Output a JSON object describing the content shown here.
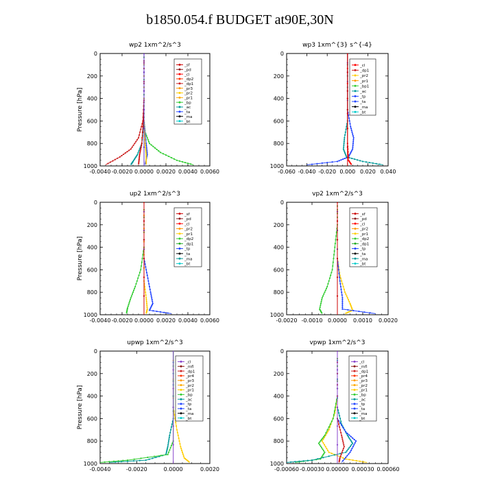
{
  "page": {
    "title": "b1850.054.f  BUDGET at90E,30N"
  },
  "chart_data": [
    {
      "type": "line",
      "title": "wp2  1xm^2/s^3",
      "ylabel": "Pressure [hPa]",
      "xlim": [
        -0.004,
        0.006
      ],
      "ylim": [
        1000,
        0
      ],
      "xticks": [
        "-0.0040",
        "-0.0020",
        "0.0000",
        "0.0020",
        "0.0040",
        "0.0060"
      ],
      "yticks": [
        "0",
        "200",
        "400",
        "600",
        "800",
        "1000"
      ],
      "legend": [
        "_sf",
        "_pd",
        "_cl",
        "_dp2",
        "_dp1",
        "_pr3",
        "_pr2",
        "_pr1",
        "_bp",
        "_ac",
        "_ta",
        "_ma",
        "_bt"
      ],
      "legend_colors": [
        "#cc0000",
        "#8b1a1a",
        "#ff0000",
        "#ff3300",
        "#cc2222",
        "#ff9900",
        "#ffcc00",
        "#ffaa00",
        "#33cc33",
        "#009999",
        "#2244ff",
        "#000000",
        "#00cccc"
      ],
      "series": [
        {
          "name": "_pr1",
          "color": "#33cc33",
          "points": [
            [
              0,
              0
            ],
            [
              0,
              200
            ],
            [
              0,
              400
            ],
            [
              0,
              600
            ],
            [
              0.0001,
              700
            ],
            [
              0.0005,
              800
            ],
            [
              0.0015,
              880
            ],
            [
              0.003,
              950
            ],
            [
              0.0045,
              990
            ]
          ]
        },
        {
          "name": "_dp1",
          "color": "#cc2222",
          "points": [
            [
              0,
              0
            ],
            [
              0,
              400
            ],
            [
              -0.0001,
              600
            ],
            [
              -0.0005,
              750
            ],
            [
              -0.0012,
              850
            ],
            [
              -0.0022,
              920
            ],
            [
              -0.0035,
              990
            ]
          ]
        },
        {
          "name": "_ac",
          "color": "#009999",
          "points": [
            [
              0,
              0
            ],
            [
              0,
              600
            ],
            [
              -0.0002,
              800
            ],
            [
              -0.0006,
              900
            ],
            [
              -0.001,
              960
            ],
            [
              -0.0012,
              990
            ]
          ]
        },
        {
          "name": "_ta",
          "color": "#2244ff",
          "points": [
            [
              0,
              0
            ],
            [
              0,
              600
            ],
            [
              0.0002,
              800
            ],
            [
              0.0003,
              900
            ],
            [
              0.0001,
              990
            ]
          ]
        },
        {
          "name": "_pr2",
          "color": "#ffcc00",
          "points": [
            [
              0,
              0
            ],
            [
              0,
              600
            ],
            [
              0.0001,
              800
            ],
            [
              0.0002,
              900
            ],
            [
              0.0002,
              990
            ]
          ]
        },
        {
          "name": "_sf",
          "color": "#cc0000",
          "points": [
            [
              0,
              0
            ],
            [
              0,
              500
            ],
            [
              -0.0002,
              800
            ],
            [
              -0.0004,
              900
            ],
            [
              -0.0005,
              990
            ]
          ]
        },
        {
          "name": "_bt",
          "color": "#6633cc",
          "points": [
            [
              0,
              0
            ],
            [
              0,
              1000
            ]
          ]
        }
      ]
    },
    {
      "type": "line",
      "title": "wp3  1xm^{3} s^{-4}",
      "ylabel": "",
      "xlim": [
        -0.06,
        0.04
      ],
      "ylim": [
        1000,
        0
      ],
      "xticks": [
        "-0.060",
        "-0.040",
        "-0.020",
        "0.000",
        "0.020",
        "0.040"
      ],
      "yticks": [
        "0",
        "200",
        "400",
        "600",
        "800",
        "1000"
      ],
      "legend": [
        "_cl",
        "_dp1",
        "_pr2",
        "_pr1",
        "_bp1",
        "_ac",
        "_tp",
        "_ta",
        "_ma",
        "_bt"
      ],
      "legend_colors": [
        "#ff0000",
        "#cc2222",
        "#ffcc00",
        "#ff9900",
        "#33cc33",
        "#009999",
        "#2244ff",
        "#2244ff",
        "#000000",
        "#00cccc"
      ],
      "series": [
        {
          "name": "_ta",
          "color": "#2244ff",
          "points": [
            [
              0,
              0
            ],
            [
              0,
              500
            ],
            [
              0.003,
              650
            ],
            [
              0.006,
              750
            ],
            [
              0.005,
              850
            ],
            [
              0.001,
              920
            ],
            [
              -0.01,
              960
            ],
            [
              -0.04,
              990
            ]
          ]
        },
        {
          "name": "_ac",
          "color": "#009999",
          "points": [
            [
              0,
              0
            ],
            [
              0,
              600
            ],
            [
              -0.003,
              750
            ],
            [
              -0.004,
              850
            ],
            [
              -0.001,
              920
            ],
            [
              0.015,
              960
            ],
            [
              0.035,
              990
            ]
          ]
        },
        {
          "name": "_cl",
          "color": "#ff0000",
          "points": [
            [
              0,
              0
            ],
            [
              0,
              800
            ],
            [
              0.001,
              950
            ],
            [
              0.004,
              990
            ]
          ]
        },
        {
          "name": "_bt",
          "color": "#cc0000",
          "points": [
            [
              0,
              0
            ],
            [
              0,
              1000
            ]
          ]
        }
      ]
    },
    {
      "type": "line",
      "title": "up2  1xm^2/s^3",
      "ylabel": "Pressure [hPa]",
      "xlim": [
        -0.004,
        0.006
      ],
      "ylim": [
        1000,
        0
      ],
      "xticks": [
        "-0.0040",
        "-0.0020",
        "0.0000",
        "0.0020",
        "0.0040",
        "0.0060"
      ],
      "yticks": [
        "0",
        "200",
        "400",
        "600",
        "800",
        "1000"
      ],
      "legend": [
        "_sf",
        "_pd",
        "_cl",
        "_pr2",
        "_pr1",
        "_dp2",
        "_dp1",
        "_tp",
        "_ta",
        "_ma",
        "_bt"
      ],
      "legend_colors": [
        "#cc0000",
        "#8b1a1a",
        "#ff0000",
        "#ff9900",
        "#ffcc00",
        "#33cc33",
        "#22aa22",
        "#2244ff",
        "#000000",
        "#009999",
        "#00cccc"
      ],
      "series": [
        {
          "name": "_dp1",
          "color": "#33cc33",
          "points": [
            [
              0,
              0
            ],
            [
              0,
              400
            ],
            [
              -0.0003,
              600
            ],
            [
              -0.0008,
              750
            ],
            [
              -0.0012,
              850
            ],
            [
              -0.0015,
              940
            ],
            [
              -0.0016,
              990
            ]
          ]
        },
        {
          "name": "_ta",
          "color": "#2244ff",
          "points": [
            [
              0,
              0
            ],
            [
              0,
              500
            ],
            [
              0.0003,
              650
            ],
            [
              0.0006,
              800
            ],
            [
              0.0008,
              900
            ],
            [
              0.0005,
              960
            ],
            [
              0.0025,
              990
            ]
          ]
        },
        {
          "name": "_pr1",
          "color": "#ffcc00",
          "points": [
            [
              0,
              0
            ],
            [
              0,
              700
            ],
            [
              0.0002,
              850
            ],
            [
              0.0003,
              950
            ],
            [
              0.0002,
              990
            ]
          ]
        },
        {
          "name": "_sf",
          "color": "#cc0000",
          "points": [
            [
              0,
              0
            ],
            [
              0,
              1000
            ]
          ]
        }
      ]
    },
    {
      "type": "line",
      "title": "vp2  1xm^2/s^3",
      "ylabel": "",
      "xlim": [
        -0.002,
        0.002
      ],
      "ylim": [
        1000,
        0
      ],
      "xticks": [
        "-0.0020",
        "-0.0010",
        "0.0000",
        "0.0010",
        "0.0020"
      ],
      "yticks": [
        "0",
        "200",
        "400",
        "600",
        "800",
        "1000"
      ],
      "legend": [
        "_sf",
        "_pd",
        "_cl",
        "_pr2",
        "_pr1",
        "_dp2",
        "_dp1",
        "_tp",
        "_ta",
        "_ma",
        "_bt"
      ],
      "legend_colors": [
        "#cc0000",
        "#8b1a1a",
        "#ff0000",
        "#ff9900",
        "#ffcc00",
        "#33cc33",
        "#22aa22",
        "#2244ff",
        "#000000",
        "#009999",
        "#00cccc"
      ],
      "series": [
        {
          "name": "_dp1",
          "color": "#33cc33",
          "points": [
            [
              0,
              0
            ],
            [
              0,
              200
            ],
            [
              -0.0001,
              400
            ],
            [
              -0.0002,
              600
            ],
            [
              -0.0004,
              750
            ],
            [
              -0.0006,
              850
            ],
            [
              -0.0007,
              950
            ],
            [
              -0.0006,
              990
            ]
          ]
        },
        {
          "name": "_pr1",
          "color": "#ffcc00",
          "points": [
            [
              0,
              0
            ],
            [
              0,
              500
            ],
            [
              0.0001,
              650
            ],
            [
              0.0003,
              800
            ],
            [
              0.0005,
              900
            ],
            [
              0.0006,
              960
            ],
            [
              0.0003,
              990
            ]
          ]
        },
        {
          "name": "_ta",
          "color": "#2244ff",
          "points": [
            [
              0,
              0
            ],
            [
              0,
              500
            ],
            [
              0.0001,
              700
            ],
            [
              0.0002,
              850
            ],
            [
              0.0002,
              950
            ],
            [
              0.0015,
              990
            ]
          ]
        },
        {
          "name": "_sf",
          "color": "#cc0000",
          "points": [
            [
              0,
              0
            ],
            [
              0,
              1000
            ]
          ]
        }
      ]
    },
    {
      "type": "line",
      "title": "upwp  1xm^2/s^3",
      "ylabel": "Pressure [hPa]",
      "xlim": [
        -0.004,
        0.002
      ],
      "ylim": [
        1000,
        0
      ],
      "xticks": [
        "-0.0040",
        "-0.0020",
        "0.0000",
        "0.0020"
      ],
      "yticks": [
        "0",
        "200",
        "400",
        "600",
        "800",
        "1000"
      ],
      "legend": [
        "_cl",
        "_mfl",
        "_dp1",
        "_pr4",
        "_pr3",
        "_pr2",
        "_pr1",
        "_bp",
        "_ac",
        "_tp",
        "_ta",
        "_ma",
        "_bt"
      ],
      "legend_colors": [
        "#8844cc",
        "#8b1a1a",
        "#cc2222",
        "#ff3300",
        "#ff9900",
        "#ffaa00",
        "#ffcc00",
        "#33cc33",
        "#009999",
        "#2244ff",
        "#2244ff",
        "#000000",
        "#00cccc"
      ],
      "series": [
        {
          "name": "_pr1",
          "color": "#ffcc00",
          "points": [
            [
              0,
              0
            ],
            [
              0,
              500
            ],
            [
              0.0002,
              700
            ],
            [
              0.0004,
              850
            ],
            [
              0.0006,
              950
            ],
            [
              0.0009,
              990
            ]
          ]
        },
        {
          "name": "_ac",
          "color": "#009999",
          "points": [
            [
              0,
              0
            ],
            [
              0,
              600
            ],
            [
              -0.0002,
              750
            ],
            [
              -0.0003,
              850
            ],
            [
              -0.0004,
              920
            ],
            [
              -0.0015,
              970
            ],
            [
              -0.0035,
              990
            ]
          ]
        },
        {
          "name": "_bp",
          "color": "#33cc33",
          "points": [
            [
              0,
              0
            ],
            [
              0,
              800
            ],
            [
              -0.0003,
              920
            ],
            [
              -0.0025,
              970
            ],
            [
              -0.004,
              990
            ]
          ]
        },
        {
          "name": "_cl",
          "color": "#8844cc",
          "points": [
            [
              0,
              0
            ],
            [
              0,
              1000
            ]
          ]
        }
      ]
    },
    {
      "type": "line",
      "title": "vpwp  1xm^2/s^3",
      "ylabel": "",
      "xlim": [
        -0.0006,
        0.0006
      ],
      "ylim": [
        1000,
        0
      ],
      "xticks": [
        "-0.00060",
        "-0.00030",
        "0.00000",
        "0.00030",
        "0.00060"
      ],
      "yticks": [
        "0",
        "200",
        "400",
        "600",
        "800",
        "1000"
      ],
      "legend": [
        "_cl",
        "_mfl",
        "_dp1",
        "_pr4",
        "_pr3",
        "_pr2",
        "_pr1",
        "_bp",
        "_ac",
        "_tp",
        "_ta",
        "_ma",
        "_bt"
      ],
      "legend_colors": [
        "#8844cc",
        "#8b1a1a",
        "#cc2222",
        "#ff3300",
        "#ff9900",
        "#ffaa00",
        "#ffcc00",
        "#33cc33",
        "#009999",
        "#2244ff",
        "#2244ff",
        "#000000",
        "#00cccc"
      ],
      "series": [
        {
          "name": "_pr1",
          "color": "#ffcc00",
          "points": [
            [
              0,
              0
            ],
            [
              0,
              400
            ],
            [
              -3e-05,
              550
            ],
            [
              -0.0001,
              700
            ],
            [
              -0.00018,
              800
            ],
            [
              -0.0001,
              900
            ],
            [
              0.0001,
              960
            ],
            [
              0.00035,
              990
            ]
          ]
        },
        {
          "name": "_bp",
          "color": "#33cc33",
          "points": [
            [
              0,
              0
            ],
            [
              0,
              400
            ],
            [
              -5e-05,
              600
            ],
            [
              -0.00015,
              750
            ],
            [
              -0.00022,
              820
            ],
            [
              -0.00015,
              900
            ],
            [
              -0.0002,
              960
            ],
            [
              -0.0005,
              990
            ]
          ]
        },
        {
          "name": "_ac",
          "color": "#009999",
          "points": [
            [
              0,
              0
            ],
            [
              0,
              500
            ],
            [
              5e-05,
              650
            ],
            [
              0.00012,
              750
            ],
            [
              0.00018,
              820
            ],
            [
              0.0001,
              900
            ],
            [
              -0.0003,
              970
            ],
            [
              -0.0006,
              990
            ]
          ]
        },
        {
          "name": "_tp",
          "color": "#2244ff",
          "points": [
            [
              0,
              0
            ],
            [
              0,
              600
            ],
            [
              0.0001,
              720
            ],
            [
              0.00022,
              800
            ],
            [
              0.00015,
              900
            ],
            [
              5e-05,
              990
            ]
          ]
        },
        {
          "name": "_dp1",
          "color": "#cc2222",
          "points": [
            [
              0,
              0
            ],
            [
              0,
              600
            ],
            [
              5e-05,
              750
            ],
            [
              8e-05,
              850
            ],
            [
              3e-05,
              950
            ],
            [
              2e-05,
              990
            ]
          ]
        },
        {
          "name": "_cl",
          "color": "#8844cc",
          "points": [
            [
              0,
              0
            ],
            [
              0,
              1000
            ]
          ]
        }
      ]
    }
  ]
}
